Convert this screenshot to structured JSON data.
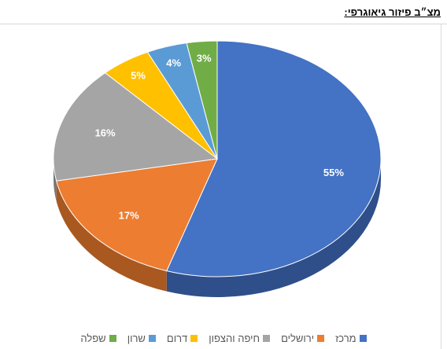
{
  "page_title": "מצ״ב פיזור גיאוגרפי:",
  "chart_data": {
    "type": "pie",
    "title": "",
    "legend_position": "bottom",
    "labels_unit": "%",
    "categories": [
      "מרכז",
      "ירושלים",
      "חיפה והצפון",
      "דרום",
      "שרון",
      "שפלה"
    ],
    "values": [
      55,
      17,
      16,
      5,
      4,
      3
    ],
    "value_labels": [
      "55%",
      "17%",
      "16%",
      "5%",
      "4%",
      "3%"
    ],
    "colors": [
      "#4472c4",
      "#ed7d31",
      "#a5a5a5",
      "#ffc000",
      "#5b9bd5",
      "#70ad47"
    ],
    "side_colors": [
      "#2f4f8a",
      "#a9581f",
      "#767676",
      "#b38600",
      "#3e6f9a",
      "#4e7a31"
    ]
  }
}
